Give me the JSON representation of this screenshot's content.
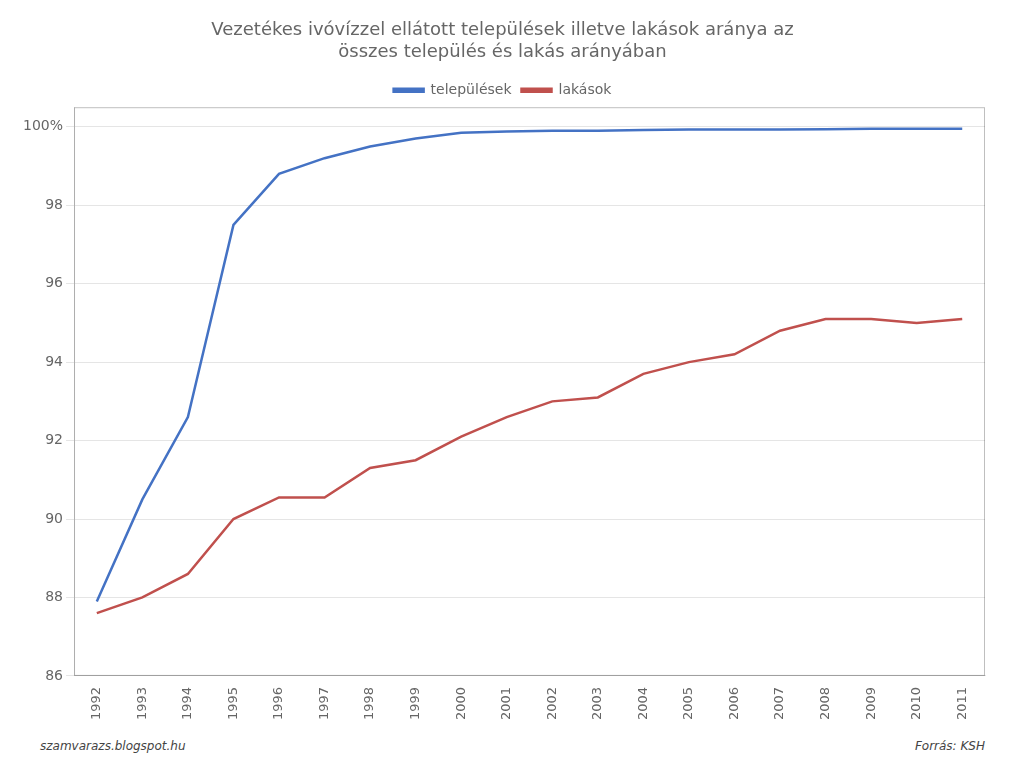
{
  "chart_data": {
    "type": "line",
    "title": "Vezetékes ivóvízzel ellátott települések illetve lakások aránya az\nösszes település és lakás arányában",
    "x": [
      1992,
      1993,
      1994,
      1995,
      1996,
      1997,
      1998,
      1999,
      2000,
      2001,
      2002,
      2003,
      2004,
      2005,
      2006,
      2007,
      2008,
      2009,
      2010,
      2011
    ],
    "series": [
      {
        "name": "települések",
        "color": "#4472C4",
        "values": [
          87.9,
          90.5,
          92.6,
          97.5,
          98.8,
          99.2,
          99.5,
          99.7,
          99.85,
          99.88,
          99.9,
          99.9,
          99.92,
          99.93,
          99.93,
          99.93,
          99.94,
          99.95,
          99.95,
          99.95
        ]
      },
      {
        "name": "lakások",
        "color": "#C0504D",
        "values": [
          87.6,
          88.0,
          88.6,
          90.0,
          90.55,
          90.55,
          91.3,
          91.5,
          92.1,
          92.6,
          93.0,
          93.1,
          93.7,
          94.0,
          94.2,
          94.8,
          95.1,
          95.1,
          95.0,
          95.1
        ]
      }
    ],
    "xlim": [
      1991.5,
      2011.5
    ],
    "xticks": [
      1992,
      1993,
      1994,
      1995,
      1996,
      1997,
      1998,
      1999,
      2000,
      2001,
      2002,
      2003,
      2004,
      2005,
      2006,
      2007,
      2008,
      2009,
      2010,
      2011
    ],
    "ylim": [
      86,
      100.5
    ],
    "yticks": [
      86,
      88,
      90,
      92,
      94,
      96,
      98,
      {
        "value": 100,
        "label": "100%"
      }
    ],
    "grid": "y",
    "legend": "top",
    "annotations": [
      "szamvarazs.blogspot.hu",
      "Forrás: KSH"
    ]
  }
}
